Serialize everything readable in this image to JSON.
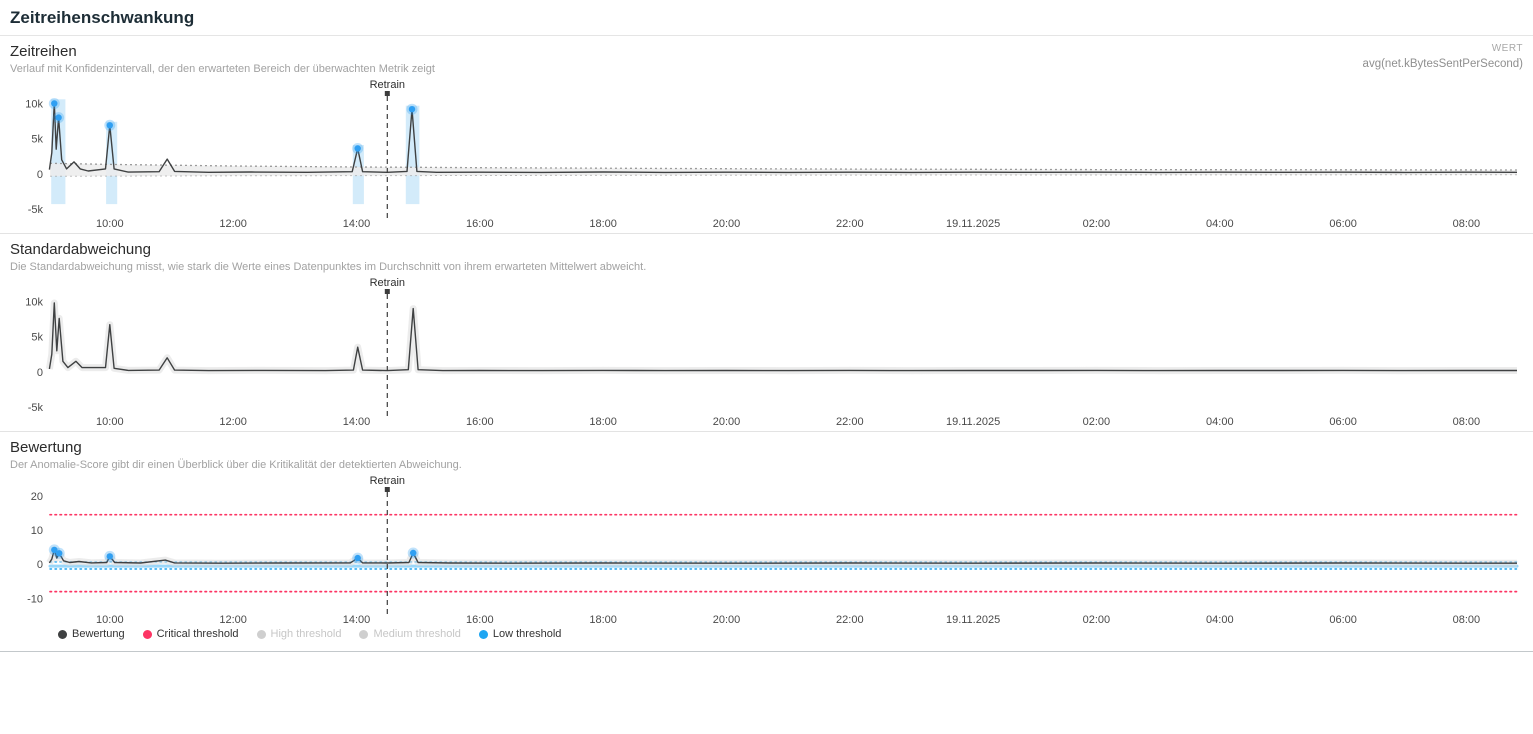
{
  "page": {
    "title": "Zeitreihenschwankung"
  },
  "colors": {
    "line": "#3f4142",
    "band": "#ececec",
    "band_edge": "#9a9a9a",
    "anomaly_band": "#b5def7",
    "dot": "#2f9ff2",
    "critical": "#fd3564",
    "low": "#1fa6f2",
    "halo": "#dcdcdc",
    "disabled": "#cfcfcf"
  },
  "panels": {
    "timeseries": {
      "title": "Zeitreihen",
      "subtitle": "Verlauf mit Konfidenzintervall, der den erwarteten Bereich der überwachten Metrik zeigt",
      "meta_label": "WERT",
      "meta_value": "avg(net.kBytesSentPerSecond)"
    },
    "stddev": {
      "title": "Standardabweichung",
      "subtitle": "Die Standardabweichung misst, wie stark die Werte eines Datenpunktes im Durchschnitt von ihrem erwarteten Mittelwert abweicht."
    },
    "score": {
      "title": "Bewertung",
      "subtitle": "Der Anomalie-Score gibt dir einen Überblick über die Kritikalität der detektierten Abweichung."
    }
  },
  "legend": [
    {
      "label": "Bewertung",
      "color": "line",
      "enabled": true
    },
    {
      "label": "Critical threshold",
      "color": "critical",
      "enabled": true
    },
    {
      "label": "High threshold",
      "color": "disabled",
      "enabled": false
    },
    {
      "label": "Medium threshold",
      "color": "disabled",
      "enabled": false
    },
    {
      "label": "Low threshold",
      "color": "low",
      "enabled": true
    }
  ],
  "chart_data": [
    {
      "id": "timeseries",
      "type": "line",
      "title": "Zeitreihen",
      "height": 152,
      "pad_top": 14,
      "plot_bottom": 130,
      "x_domain": [
        9.03,
        32.82
      ],
      "y_domain": [
        -5000,
        11500
      ],
      "y_ticks": [
        {
          "v": 10000,
          "label": "10k"
        },
        {
          "v": 5000,
          "label": "5k"
        },
        {
          "v": 0,
          "label": "0"
        },
        {
          "v": -5000,
          "label": "-5k"
        }
      ],
      "x_ticks": [
        {
          "v": 10,
          "label": "10:00"
        },
        {
          "v": 12,
          "label": "12:00"
        },
        {
          "v": 14,
          "label": "14:00"
        },
        {
          "v": 16,
          "label": "16:00"
        },
        {
          "v": 18,
          "label": "18:00"
        },
        {
          "v": 20,
          "label": "20:00"
        },
        {
          "v": 22,
          "label": "22:00"
        },
        {
          "v": 24,
          "label": "19.11.2025"
        },
        {
          "v": 26,
          "label": "02:00"
        },
        {
          "v": 28,
          "label": "04:00"
        },
        {
          "v": 30,
          "label": "06:00"
        },
        {
          "v": 32,
          "label": "08:00"
        }
      ],
      "retrain": {
        "x": 14.5,
        "label": "Retrain"
      },
      "band": {
        "upper": [
          [
            9.03,
            1500
          ],
          [
            10,
            1350
          ],
          [
            11,
            1230
          ],
          [
            12,
            1120
          ],
          [
            13,
            1040
          ],
          [
            14,
            980
          ],
          [
            15,
            930
          ],
          [
            16,
            880
          ],
          [
            18,
            800
          ],
          [
            20,
            730
          ],
          [
            22,
            680
          ],
          [
            24,
            640
          ],
          [
            26,
            610
          ],
          [
            28,
            590
          ],
          [
            30,
            570
          ],
          [
            32.82,
            550
          ]
        ],
        "lower": [
          [
            9.03,
            -350
          ],
          [
            12,
            -280
          ],
          [
            16,
            -230
          ],
          [
            20,
            -190
          ],
          [
            24,
            -165
          ],
          [
            28,
            -145
          ],
          [
            32.82,
            -125
          ]
        ]
      },
      "anomaly_bands": [
        {
          "x0": 9.05,
          "x1": 9.28,
          "top": 10600,
          "bottom": -4300
        },
        {
          "x0": 9.94,
          "x1": 10.12,
          "top": 7400,
          "bottom": -4300
        },
        {
          "x0": 13.94,
          "x1": 14.12,
          "top": 4100,
          "bottom": -4300
        },
        {
          "x0": 14.8,
          "x1": 15.02,
          "top": 9700,
          "bottom": -4300
        }
      ],
      "series": [
        {
          "name": "avg(net.kBytesSentPerSecond)",
          "color": "line",
          "width": 1.4,
          "points": [
            [
              9.02,
              600
            ],
            [
              9.06,
              3000
            ],
            [
              9.1,
              10000
            ],
            [
              9.13,
              3500
            ],
            [
              9.17,
              8000
            ],
            [
              9.22,
              2000
            ],
            [
              9.3,
              700
            ],
            [
              9.42,
              1700
            ],
            [
              9.52,
              700
            ],
            [
              9.65,
              400
            ],
            [
              9.93,
              700
            ],
            [
              10.0,
              6900
            ],
            [
              10.07,
              700
            ],
            [
              10.3,
              250
            ],
            [
              10.8,
              300
            ],
            [
              10.93,
              2100
            ],
            [
              11.05,
              350
            ],
            [
              11.6,
              220
            ],
            [
              12.3,
              260
            ],
            [
              13.2,
              220
            ],
            [
              13.93,
              300
            ],
            [
              14.02,
              3600
            ],
            [
              14.1,
              300
            ],
            [
              14.5,
              220
            ],
            [
              14.82,
              350
            ],
            [
              14.9,
              9200
            ],
            [
              14.98,
              350
            ],
            [
              15.3,
              220
            ],
            [
              16,
              230
            ],
            [
              17,
              210
            ],
            [
              18,
              260
            ],
            [
              19,
              210
            ],
            [
              20,
              230
            ],
            [
              21,
              210
            ],
            [
              22,
              240
            ],
            [
              23,
              210
            ],
            [
              24,
              230
            ],
            [
              25,
              215
            ],
            [
              26,
              235
            ],
            [
              27,
              210
            ],
            [
              28,
              230
            ],
            [
              29,
              215
            ],
            [
              30,
              235
            ],
            [
              31,
              210
            ],
            [
              32,
              230
            ],
            [
              32.82,
              220
            ]
          ]
        }
      ],
      "dots": [
        [
          9.1,
          10000
        ],
        [
          9.17,
          8000
        ],
        [
          10.0,
          6900
        ],
        [
          14.02,
          3600
        ],
        [
          14.9,
          9200
        ]
      ]
    },
    {
      "id": "stddev",
      "type": "line",
      "title": "Standardabweichung",
      "height": 152,
      "pad_top": 14,
      "plot_bottom": 130,
      "x_domain": [
        9.03,
        32.82
      ],
      "y_domain": [
        -5000,
        11500
      ],
      "y_ticks": [
        {
          "v": 10000,
          "label": "10k"
        },
        {
          "v": 5000,
          "label": "5k"
        },
        {
          "v": 0,
          "label": "0"
        },
        {
          "v": -5000,
          "label": "-5k"
        }
      ],
      "x_ticks": [
        {
          "v": 10,
          "label": "10:00"
        },
        {
          "v": 12,
          "label": "12:00"
        },
        {
          "v": 14,
          "label": "14:00"
        },
        {
          "v": 16,
          "label": "16:00"
        },
        {
          "v": 18,
          "label": "18:00"
        },
        {
          "v": 20,
          "label": "20:00"
        },
        {
          "v": 22,
          "label": "22:00"
        },
        {
          "v": 24,
          "label": "19.11.2025"
        },
        {
          "v": 26,
          "label": "02:00"
        },
        {
          "v": 28,
          "label": "04:00"
        },
        {
          "v": 30,
          "label": "06:00"
        },
        {
          "v": 32,
          "label": "08:00"
        }
      ],
      "retrain": {
        "x": 14.5,
        "label": "Retrain"
      },
      "series": [
        {
          "name": "Standardabweichung",
          "color": "line",
          "width": 1.4,
          "halo": "halo",
          "points": [
            [
              9.02,
              400
            ],
            [
              9.06,
              2500
            ],
            [
              9.1,
              9800
            ],
            [
              9.14,
              3000
            ],
            [
              9.18,
              7600
            ],
            [
              9.24,
              1500
            ],
            [
              9.32,
              600
            ],
            [
              9.45,
              1500
            ],
            [
              9.55,
              600
            ],
            [
              9.93,
              600
            ],
            [
              10.0,
              6700
            ],
            [
              10.07,
              500
            ],
            [
              10.3,
              200
            ],
            [
              10.8,
              250
            ],
            [
              10.93,
              2000
            ],
            [
              11.05,
              250
            ],
            [
              11.6,
              180
            ],
            [
              12.5,
              200
            ],
            [
              13.5,
              180
            ],
            [
              13.95,
              250
            ],
            [
              14.02,
              3500
            ],
            [
              14.1,
              250
            ],
            [
              14.5,
              180
            ],
            [
              14.84,
              300
            ],
            [
              14.92,
              9000
            ],
            [
              15.0,
              300
            ],
            [
              15.4,
              180
            ],
            [
              16,
              190
            ],
            [
              17,
              180
            ],
            [
              18,
              210
            ],
            [
              19,
              180
            ],
            [
              20,
              195
            ],
            [
              21,
              180
            ],
            [
              22,
              200
            ],
            [
              23,
              180
            ],
            [
              24,
              195
            ],
            [
              25,
              185
            ],
            [
              26,
              200
            ],
            [
              27,
              180
            ],
            [
              28,
              195
            ],
            [
              29,
              185
            ],
            [
              30,
              200
            ],
            [
              31,
              180
            ],
            [
              32,
              195
            ],
            [
              32.82,
              185
            ]
          ]
        }
      ],
      "dots": []
    },
    {
      "id": "score",
      "type": "line",
      "title": "Bewertung",
      "height": 152,
      "pad_top": 14,
      "plot_bottom": 132,
      "x_domain": [
        9.03,
        32.82
      ],
      "y_domain": [
        -12.5,
        22
      ],
      "y_ticks": [
        {
          "v": 20,
          "label": "20"
        },
        {
          "v": 10,
          "label": "10"
        },
        {
          "v": 0,
          "label": "0"
        },
        {
          "v": -10,
          "label": "-10"
        }
      ],
      "x_ticks": [
        {
          "v": 10,
          "label": "10:00"
        },
        {
          "v": 12,
          "label": "12:00"
        },
        {
          "v": 14,
          "label": "14:00"
        },
        {
          "v": 16,
          "label": "16:00"
        },
        {
          "v": 18,
          "label": "18:00"
        },
        {
          "v": 20,
          "label": "20:00"
        },
        {
          "v": 22,
          "label": "22:00"
        },
        {
          "v": 24,
          "label": "19.11.2025"
        },
        {
          "v": 26,
          "label": "02:00"
        },
        {
          "v": 28,
          "label": "04:00"
        },
        {
          "v": 30,
          "label": "06:00"
        },
        {
          "v": 32,
          "label": "08:00"
        }
      ],
      "retrain": {
        "x": 14.5,
        "label": "Retrain"
      },
      "threshold_lines": [
        {
          "name": "critical-upper",
          "y": 14.5,
          "color": "critical",
          "style": "dotted",
          "width": 1.7
        },
        {
          "name": "critical-lower",
          "y": -8,
          "color": "critical",
          "style": "dotted",
          "width": 1.7
        },
        {
          "name": "low-upper",
          "y": 0.7,
          "color": "low",
          "style": "dotted",
          "width": 1.4
        },
        {
          "name": "low-lower",
          "y": -1.4,
          "color": "low",
          "style": "dotted",
          "width": 1.4
        },
        {
          "name": "low-band",
          "y": -0.55,
          "color": "low",
          "style": "solid",
          "width": 3,
          "opacity": 0.45
        }
      ],
      "series": [
        {
          "name": "Bewertung",
          "color": "line",
          "width": 1.4,
          "halo": "halo",
          "points": [
            [
              9.02,
              0.4
            ],
            [
              9.06,
              1.5
            ],
            [
              9.1,
              4.2
            ],
            [
              9.14,
              1.8
            ],
            [
              9.18,
              3.2
            ],
            [
              9.25,
              1.0
            ],
            [
              9.35,
              0.5
            ],
            [
              9.5,
              0.8
            ],
            [
              9.7,
              0.4
            ],
            [
              9.95,
              0.5
            ],
            [
              10.0,
              2.3
            ],
            [
              10.08,
              0.5
            ],
            [
              10.5,
              0.35
            ],
            [
              10.9,
              1.2
            ],
            [
              11.05,
              0.4
            ],
            [
              11.8,
              0.3
            ],
            [
              12.8,
              0.35
            ],
            [
              13.9,
              0.4
            ],
            [
              14.02,
              1.8
            ],
            [
              14.1,
              0.4
            ],
            [
              14.5,
              0.35
            ],
            [
              14.85,
              0.5
            ],
            [
              14.92,
              3.3
            ],
            [
              15.0,
              0.5
            ],
            [
              15.5,
              0.35
            ],
            [
              16.5,
              0.3
            ],
            [
              18,
              0.35
            ],
            [
              20,
              0.3
            ],
            [
              22,
              0.35
            ],
            [
              24,
              0.3
            ],
            [
              26,
              0.35
            ],
            [
              28,
              0.3
            ],
            [
              30,
              0.35
            ],
            [
              32,
              0.3
            ],
            [
              32.82,
              0.32
            ]
          ]
        }
      ],
      "dots": [
        [
          9.1,
          4.2
        ],
        [
          9.18,
          3.2
        ],
        [
          10.0,
          2.3
        ],
        [
          14.02,
          1.8
        ],
        [
          14.92,
          3.3
        ]
      ]
    }
  ]
}
